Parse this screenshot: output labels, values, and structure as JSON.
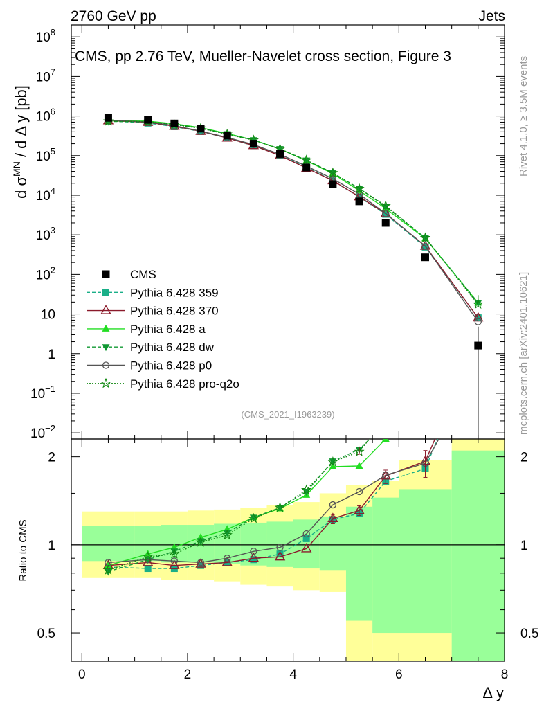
{
  "header": {
    "left": "2760 GeV pp",
    "right": "Jets"
  },
  "side_labels": {
    "rivet": "Rivet 4.1.0, ≥ 3.5M events",
    "mcplots": "mcplots.cern.ch [arXiv:2401.10621]"
  },
  "chart_data": {
    "type": "line",
    "title": "CMS, pp 2.76 TeV, Mueller-Navelet cross section, Figure 3",
    "watermark": "(CMS_2021_I1963239)",
    "xlabel": "Δ y",
    "ylabel": "d σ^MN / d Δ y [pb]",
    "ylabel_parts": {
      "a": "d σ",
      "sup": "MN",
      "b": " / d Δ y [pb]"
    },
    "ratio_ylabel": "Ratio to CMS",
    "xlim": [
      -0.2,
      8.0
    ],
    "ylim": [
      0.007,
      200000000
    ],
    "ratio_ylim": [
      0.4,
      2.3
    ],
    "x_ticks": [
      "0",
      "2",
      "4",
      "6",
      "8"
    ],
    "y_ticks": [
      {
        "v": 0.01,
        "m": "10",
        "e": "−2"
      },
      {
        "v": 0.1,
        "m": "10",
        "e": "−1"
      },
      {
        "v": 1,
        "m": "1",
        "e": ""
      },
      {
        "v": 10,
        "m": "10",
        "e": ""
      },
      {
        "v": 100,
        "m": "10",
        "e": "2"
      },
      {
        "v": 1000,
        "m": "10",
        "e": "3"
      },
      {
        "v": 10000,
        "m": "10",
        "e": "4"
      },
      {
        "v": 100000,
        "m": "10",
        "e": "5"
      },
      {
        "v": 1000000,
        "m": "10",
        "e": "6"
      },
      {
        "v": 10000000,
        "m": "10",
        "e": "7"
      },
      {
        "v": 100000000,
        "m": "10",
        "e": "8"
      }
    ],
    "ratio_ticks": [
      "0.5",
      "1",
      "2"
    ],
    "x": [
      0.5,
      1.25,
      1.75,
      2.25,
      2.75,
      3.25,
      3.75,
      4.25,
      4.75,
      5.25,
      5.75,
      6.5,
      7.5
    ],
    "bin_edges": [
      0,
      1,
      1.5,
      2,
      2.5,
      3,
      3.5,
      4,
      4.5,
      5,
      5.5,
      6,
      7,
      8
    ],
    "data": {
      "name": "CMS",
      "values": [
        900000,
        800000,
        650000,
        480000,
        320000,
        200000,
        110000,
        50000,
        19000,
        7000,
        2000,
        270,
        1.6
      ]
    },
    "band_inner": [
      [
        0.88,
        1.16
      ],
      [
        0.88,
        1.16
      ],
      [
        0.87,
        1.17
      ],
      [
        0.87,
        1.17
      ],
      [
        0.86,
        1.18
      ],
      [
        0.85,
        1.19
      ],
      [
        0.84,
        1.2
      ],
      [
        0.83,
        1.22
      ],
      [
        0.82,
        1.25
      ],
      [
        0.55,
        1.35
      ],
      [
        0.5,
        1.45
      ],
      [
        0.5,
        1.55
      ],
      [
        0.35,
        2.1
      ]
    ],
    "band_outer": [
      [
        0.77,
        1.3
      ],
      [
        0.77,
        1.3
      ],
      [
        0.76,
        1.3
      ],
      [
        0.76,
        1.31
      ],
      [
        0.75,
        1.32
      ],
      [
        0.73,
        1.34
      ],
      [
        0.72,
        1.37
      ],
      [
        0.7,
        1.4
      ],
      [
        0.69,
        1.5
      ],
      [
        0.35,
        1.6
      ],
      [
        0.35,
        1.65
      ],
      [
        0.35,
        1.95
      ],
      [
        0.35,
        2.5
      ]
    ],
    "series": [
      {
        "name": "Pythia 6.428 359",
        "color": "#1aaf88",
        "dash": "5,3",
        "marker": "square",
        "ratio": [
          0.84,
          0.83,
          0.83,
          0.85,
          0.87,
          0.89,
          0.93,
          1.05,
          1.22,
          1.28,
          1.65,
          1.82,
          5.0
        ]
      },
      {
        "name": "Pythia 6.428 370",
        "color": "#8b1a2b",
        "dash": "",
        "marker": "open-triangle",
        "ratio": [
          0.85,
          0.87,
          0.85,
          0.86,
          0.87,
          0.9,
          0.91,
          0.97,
          1.23,
          1.31,
          1.72,
          1.93,
          5.0
        ]
      },
      {
        "name": "Pythia 6.428 a",
        "color": "#22dd22",
        "dash": "",
        "marker": "triangle",
        "ratio": [
          0.85,
          0.93,
          0.98,
          1.06,
          1.13,
          1.24,
          1.33,
          1.48,
          1.85,
          1.86,
          2.3,
          3.0,
          12.0
        ]
      },
      {
        "name": "Pythia 6.428 dw",
        "color": "#119933",
        "dash": "5,3",
        "marker": "down-triangle",
        "ratio": [
          0.81,
          0.89,
          0.95,
          1.03,
          1.1,
          1.24,
          1.34,
          1.52,
          1.93,
          2.12,
          2.6,
          3.1,
          12.0
        ]
      },
      {
        "name": "Pythia 6.428 p0",
        "color": "#555555",
        "dash": "",
        "marker": "open-circle",
        "ratio": [
          0.87,
          0.89,
          0.88,
          0.87,
          0.9,
          0.95,
          0.98,
          1.09,
          1.37,
          1.52,
          1.73,
          1.9,
          4.0
        ]
      },
      {
        "name": "Pythia 6.428 pro-q2o",
        "color": "#118811",
        "dash": "2,2",
        "marker": "star",
        "ratio": [
          0.82,
          0.91,
          0.93,
          1.02,
          1.08,
          1.23,
          1.34,
          1.54,
          1.92,
          2.08,
          2.7,
          3.1,
          11.0
        ]
      }
    ]
  }
}
